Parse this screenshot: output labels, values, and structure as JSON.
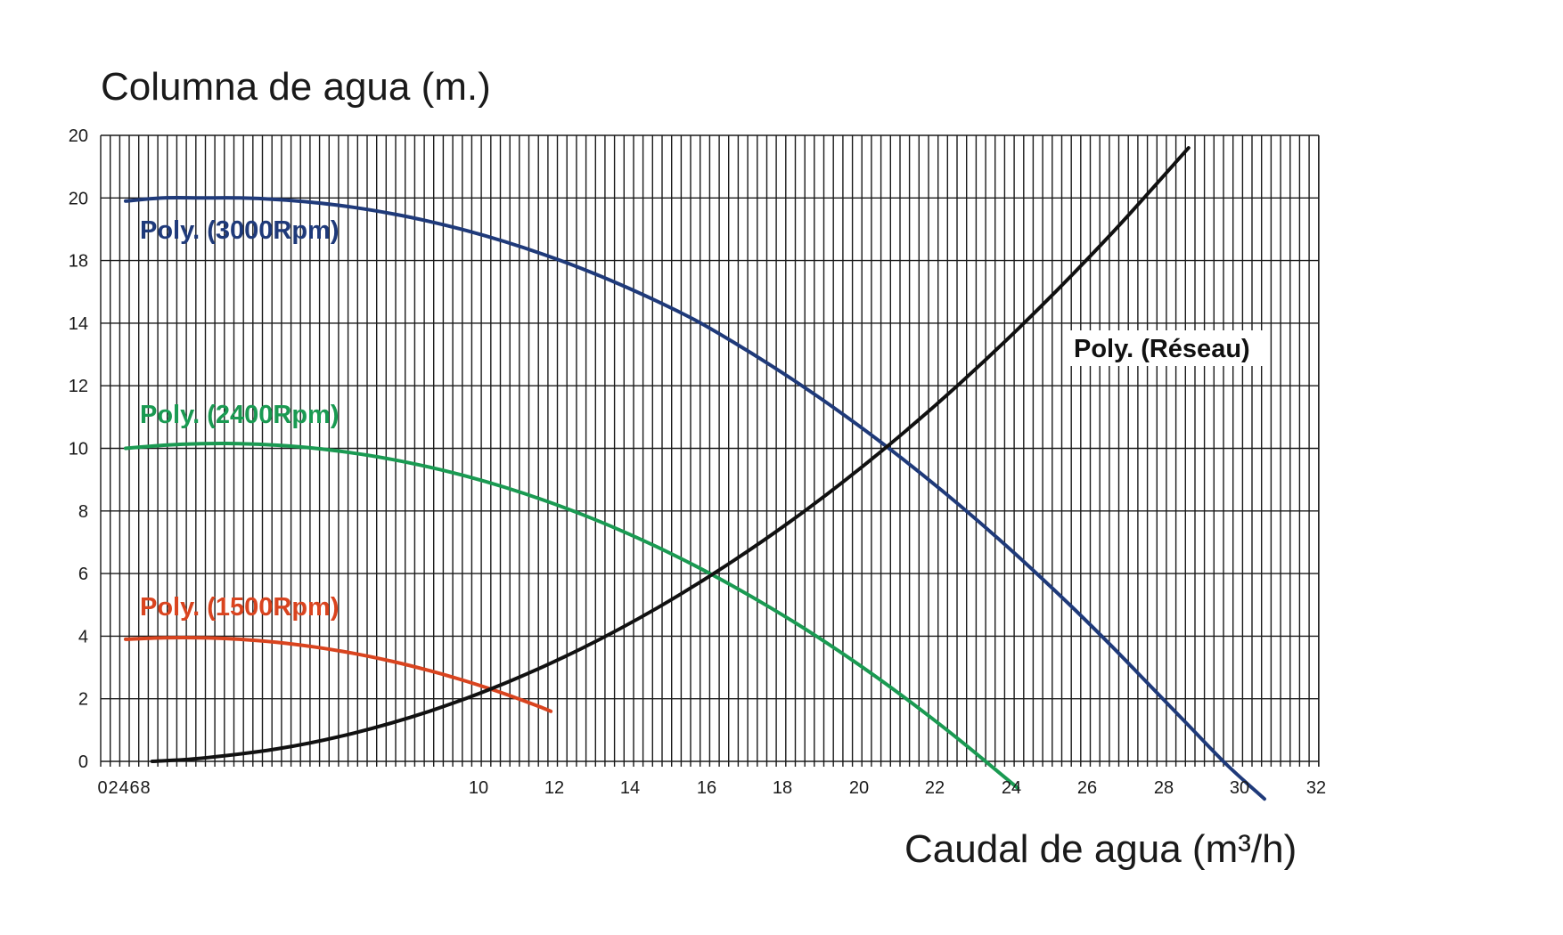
{
  "chart_data": {
    "type": "line",
    "title": "",
    "ylabel": "Columna de agua (m.)",
    "xlabel": "Caudal de agua (m³/h)",
    "grid": true,
    "x_tick_labels": [
      "0",
      "2",
      "4",
      "6",
      "8",
      "10",
      "12",
      "14",
      "16",
      "18",
      "20",
      "22",
      "24",
      "26",
      "28",
      "30",
      "32"
    ],
    "y_tick_labels": [
      "0",
      "2",
      "4",
      "6",
      "8",
      "10",
      "12",
      "14",
      "18",
      "20",
      "20"
    ],
    "series": [
      {
        "name": "Poly. (3000Rpm)",
        "color": "#1f3a7a",
        "x": [
          0,
          1,
          2,
          3,
          4,
          5,
          6,
          7,
          8,
          9,
          10,
          11,
          12,
          13,
          14,
          15,
          16,
          17,
          18,
          19,
          20,
          21,
          22,
          23,
          24,
          25,
          26,
          27,
          28,
          29,
          30
        ],
        "y": [
          17.9,
          18.0,
          18.0,
          18.0,
          17.95,
          17.85,
          17.7,
          17.5,
          17.25,
          16.95,
          16.6,
          16.2,
          15.75,
          15.25,
          14.7,
          14.1,
          13.4,
          12.65,
          11.85,
          11.0,
          10.1,
          9.15,
          8.15,
          7.1,
          6.0,
          4.85,
          3.65,
          2.4,
          1.15,
          -0.1,
          -1.2
        ]
      },
      {
        "name": "Poly. (2400Rpm)",
        "color": "#1a9a52",
        "x": [
          0,
          1,
          2,
          3,
          4,
          5,
          6,
          7,
          8,
          9,
          10,
          11,
          12,
          13,
          14,
          15,
          16,
          17,
          18,
          19,
          20,
          21,
          22,
          23,
          23.5
        ],
        "y": [
          10.0,
          10.1,
          10.15,
          10.15,
          10.1,
          10.0,
          9.85,
          9.65,
          9.4,
          9.1,
          8.75,
          8.35,
          7.9,
          7.4,
          6.85,
          6.25,
          5.6,
          4.9,
          4.15,
          3.35,
          2.5,
          1.6,
          0.65,
          -0.35,
          -0.85
        ]
      },
      {
        "name": "Poly. (1500Rpm)",
        "color": "#d9441f",
        "x": [
          0,
          1,
          2,
          3,
          4,
          5,
          6,
          7,
          8,
          9,
          10,
          11,
          11.2
        ],
        "y": [
          3.9,
          3.95,
          3.95,
          3.9,
          3.8,
          3.65,
          3.45,
          3.2,
          2.9,
          2.55,
          2.15,
          1.7,
          1.6
        ]
      },
      {
        "name": "Poly. (Réseau)",
        "color": "#111111",
        "x": [
          0.7,
          2,
          4,
          6,
          8,
          10,
          12,
          14,
          16,
          18,
          20,
          22,
          24,
          26,
          28
        ],
        "y": [
          0,
          0.1,
          0.4,
          0.9,
          1.6,
          2.5,
          3.6,
          4.9,
          6.4,
          8.1,
          10.0,
          12.1,
          14.4,
          16.9,
          19.6
        ]
      }
    ]
  }
}
